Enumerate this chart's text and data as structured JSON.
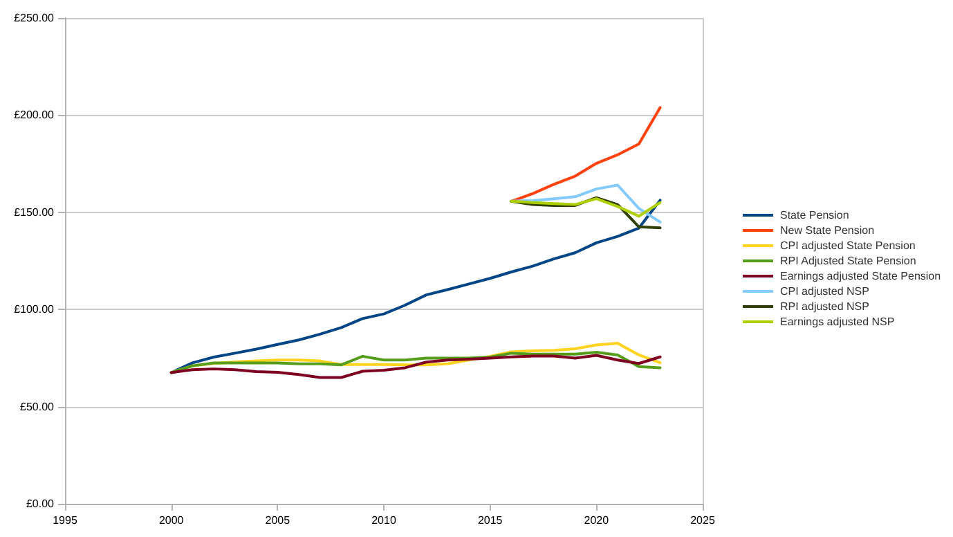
{
  "chart_data": {
    "type": "line",
    "x": [
      2000,
      2001,
      2002,
      2003,
      2004,
      2005,
      2006,
      2007,
      2008,
      2009,
      2010,
      2011,
      2012,
      2013,
      2014,
      2015,
      2016,
      2017,
      2018,
      2019,
      2020,
      2021,
      2022,
      2023
    ],
    "series": [
      {
        "name": "State Pension",
        "color": "#004586",
        "values": [
          67.5,
          72.5,
          75.5,
          77.5,
          79.6,
          82,
          84.3,
          87.3,
          90.7,
          95.3,
          97.7,
          102.2,
          107.5,
          110.2,
          113.1,
          116,
          119.3,
          122.3,
          126,
          129.2,
          134.3,
          137.6,
          141.9,
          156.2
        ]
      },
      {
        "name": "New State Pension",
        "color": "#ff420e",
        "x": [
          2016,
          2017,
          2018,
          2019,
          2020,
          2021,
          2022,
          2023
        ],
        "values": [
          155.7,
          159.6,
          164.4,
          168.6,
          175.2,
          179.6,
          185.2,
          203.9
        ]
      },
      {
        "name": "CPI adjusted State Pension",
        "color": "#ffd320",
        "values": [
          67.5,
          71,
          72.2,
          73,
          73.5,
          74,
          74,
          73.5,
          71.7,
          71.7,
          71.7,
          71.5,
          71.5,
          72,
          74,
          75.9,
          78.2,
          78.7,
          79,
          79.8,
          81.7,
          82.6,
          76.6,
          72.6
        ]
      },
      {
        "name": "RPI Adjusted State Pension",
        "color": "#579d1c",
        "values": [
          67.5,
          71,
          72.5,
          72.5,
          72.5,
          72.5,
          72,
          72,
          71.5,
          75.9,
          74,
          74,
          75,
          75,
          75,
          75.5,
          77.5,
          77,
          77,
          77,
          78,
          76.6,
          70.6,
          70
        ]
      },
      {
        "name": "Earnings adjusted State Pension",
        "color": "#7e0021",
        "values": [
          67.5,
          69,
          69.4,
          69,
          68,
          67.7,
          66.5,
          65,
          65,
          68.2,
          68.7,
          70,
          72.9,
          74,
          74.4,
          75,
          75.6,
          76,
          76,
          75,
          76.4,
          74,
          72.2,
          75.6
        ]
      },
      {
        "name": "CPI adjusted NSP",
        "color": "#83caff",
        "x": [
          2016,
          2017,
          2018,
          2019,
          2020,
          2021,
          2022,
          2023
        ],
        "values": [
          155.7,
          156,
          157,
          158,
          162,
          164,
          152,
          145
        ]
      },
      {
        "name": "RPI adjusted NSP",
        "color": "#314004",
        "x": [
          2016,
          2017,
          2018,
          2019,
          2020,
          2021,
          2022,
          2023
        ],
        "values": [
          155.7,
          154,
          153.5,
          153.5,
          157.5,
          154,
          142.5,
          142
        ]
      },
      {
        "name": "Earnings adjusted NSP",
        "color": "#aecf00",
        "x": [
          2016,
          2017,
          2018,
          2019,
          2020,
          2021,
          2022,
          2023
        ],
        "values": [
          155.7,
          155,
          154.5,
          154,
          157,
          153,
          148,
          155
        ]
      }
    ],
    "xlim": [
      1995,
      2025
    ],
    "xticks": [
      1995,
      2000,
      2005,
      2010,
      2015,
      2020,
      2025
    ],
    "ylim": [
      0,
      250
    ],
    "yticks": [
      {
        "value": 0,
        "label": "£0.00"
      },
      {
        "value": 50,
        "label": "£50.00"
      },
      {
        "value": 100,
        "label": "£100.00"
      },
      {
        "value": 150,
        "label": "£150.00"
      },
      {
        "value": 200,
        "label": "£200.00"
      },
      {
        "value": 250,
        "label": "£250.00"
      }
    ],
    "grid": "y",
    "legend": "right",
    "marker": "none",
    "line_style": "solid"
  }
}
